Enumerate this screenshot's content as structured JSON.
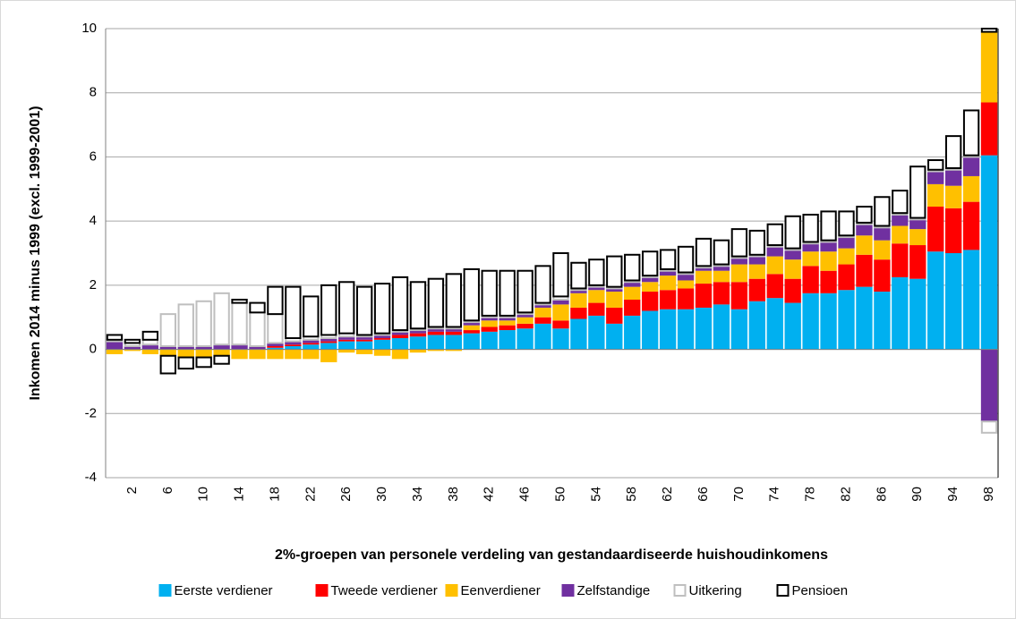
{
  "chart_data": {
    "type": "stacked_bar",
    "y_label": "Inkomen 2014 minus 1999 (excl. 1999-2001)",
    "x_label": "2%-groepen van personele verdeling van gestandaardiseerde huishoudinkomens",
    "categories": [
      null,
      "2",
      null,
      "6",
      null,
      "10",
      null,
      "14",
      null,
      "18",
      null,
      "22",
      null,
      "26",
      null,
      "30",
      null,
      "34",
      null,
      "38",
      null,
      "42",
      null,
      "46",
      null,
      "50",
      null,
      "54",
      null,
      "58",
      null,
      "62",
      null,
      "66",
      null,
      "70",
      null,
      "74",
      null,
      "78",
      null,
      "82",
      null,
      "86",
      null,
      "90",
      null,
      "94",
      null,
      "98"
    ],
    "ylim": [
      -4,
      10
    ],
    "yticks": [
      -4,
      -2,
      0,
      2,
      4,
      6,
      8,
      10
    ],
    "grid": true,
    "legend": "bottom",
    "series": [
      {
        "name": "Eerste verdiener",
        "color": "#00b0f0",
        "style": "filled",
        "values": [
          0,
          0,
          0,
          0,
          0,
          0,
          0,
          0,
          0,
          0.05,
          0.1,
          0.15,
          0.2,
          0.25,
          0.25,
          0.3,
          0.35,
          0.4,
          0.45,
          0.45,
          0.5,
          0.55,
          0.6,
          0.65,
          0.8,
          0.65,
          0.95,
          1.05,
          0.8,
          1.05,
          1.2,
          1.25,
          1.25,
          1.3,
          1.4,
          1.25,
          1.5,
          1.6,
          1.45,
          1.75,
          1.75,
          1.85,
          1.95,
          1.8,
          2.25,
          2.2,
          3.05,
          3.0,
          3.1,
          6.05
        ]
      },
      {
        "name": "Tweede verdiener",
        "color": "#ff0000",
        "style": "filled",
        "values": [
          0,
          0,
          0,
          0,
          0,
          0,
          0,
          0,
          0,
          0.05,
          0.05,
          0.05,
          0.05,
          0.05,
          0.05,
          0.05,
          0.1,
          0.1,
          0.1,
          0.1,
          0.1,
          0.15,
          0.15,
          0.15,
          0.2,
          0.25,
          0.35,
          0.4,
          0.5,
          0.5,
          0.6,
          0.6,
          0.65,
          0.75,
          0.7,
          0.85,
          0.7,
          0.75,
          0.75,
          0.85,
          0.7,
          0.8,
          1.0,
          1.0,
          1.05,
          1.05,
          1.4,
          1.4,
          1.5,
          1.65
        ]
      },
      {
        "name": "Eenverdiener",
        "color": "#ffc000",
        "style": "filled",
        "values": [
          -0.15,
          -0.05,
          -0.15,
          -0.2,
          -0.25,
          -0.25,
          -0.2,
          -0.3,
          -0.3,
          -0.3,
          -0.3,
          -0.3,
          -0.4,
          -0.1,
          -0.15,
          -0.2,
          -0.3,
          -0.1,
          -0.05,
          -0.05,
          0.15,
          0.2,
          0.15,
          0.2,
          0.3,
          0.5,
          0.45,
          0.4,
          0.5,
          0.4,
          0.3,
          0.45,
          0.25,
          0.4,
          0.35,
          0.55,
          0.45,
          0.55,
          0.6,
          0.45,
          0.6,
          0.5,
          0.6,
          0.6,
          0.55,
          0.5,
          0.7,
          0.7,
          0.8,
          2.2
        ]
      },
      {
        "name": "Zelfstandige",
        "color": "#7030a0",
        "style": "filled",
        "values": [
          0.25,
          0.1,
          0.15,
          0.1,
          0.1,
          0.1,
          0.15,
          0.15,
          0.1,
          0.1,
          0.1,
          0.1,
          0.1,
          0.1,
          0.1,
          0.1,
          0.1,
          0.1,
          0.1,
          0.1,
          0.1,
          0.1,
          0.1,
          0.1,
          0.1,
          0.15,
          0.1,
          0.1,
          0.1,
          0.15,
          0.15,
          0.15,
          0.2,
          0.1,
          0.15,
          0.2,
          0.25,
          0.3,
          0.3,
          0.25,
          0.3,
          0.35,
          0.35,
          0.4,
          0.35,
          0.3,
          0.4,
          0.5,
          0.6,
          -2.25
        ]
      },
      {
        "name": "Uitkering",
        "color": "#bfbfbf",
        "style": "outline",
        "values": [
          0.05,
          0.1,
          0.15,
          1.0,
          1.3,
          1.4,
          1.6,
          1.3,
          1.05,
          0.9,
          0.1,
          0.1,
          0.1,
          0.1,
          0.05,
          0.05,
          0.05,
          0.05,
          0.05,
          0.05,
          0.05,
          0.05,
          0.05,
          0.05,
          0.05,
          0.1,
          0.05,
          0.05,
          0.05,
          0.05,
          0.05,
          0.05,
          0.05,
          0.05,
          0.05,
          0.05,
          0.05,
          0.05,
          0.05,
          0.05,
          0.05,
          0.05,
          0.05,
          0.05,
          0.05,
          0.05,
          0.05,
          0.05,
          0.05,
          -0.35
        ]
      },
      {
        "name": "Pensioen",
        "color": "#000000",
        "style": "outline",
        "values": [
          0.15,
          0.1,
          0.25,
          -0.55,
          -0.35,
          -0.3,
          -0.25,
          0.1,
          0.3,
          0.85,
          1.6,
          1.25,
          1.55,
          1.6,
          1.5,
          1.55,
          1.65,
          1.45,
          1.5,
          1.65,
          1.6,
          1.4,
          1.4,
          1.3,
          1.15,
          1.35,
          0.8,
          0.8,
          0.95,
          0.8,
          0.75,
          0.6,
          0.8,
          0.85,
          0.75,
          0.85,
          0.75,
          0.65,
          1.0,
          0.85,
          0.9,
          0.75,
          0.5,
          0.9,
          0.7,
          1.6,
          0.3,
          1.0,
          1.4,
          0.1
        ]
      }
    ]
  }
}
